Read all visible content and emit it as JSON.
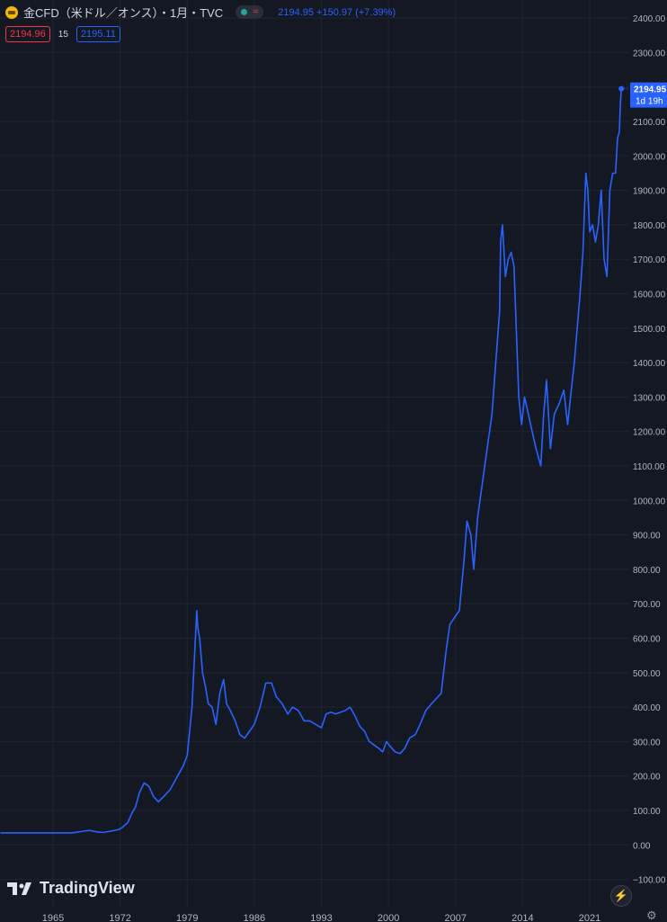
{
  "legend": {
    "title": "金CFD（米ドル／オンス）・1月・TVC",
    "price_change": "2194.95  +150.97 (+7.39%)",
    "market_status_icon": "green-dot",
    "wave_icon": "tilde"
  },
  "quotes": {
    "bid": "2194.96",
    "spread": "15",
    "ask": "2195.11"
  },
  "last_price": {
    "value": "2194.95",
    "countdown": "1d 19h"
  },
  "branding": {
    "logo_text": "TradingView"
  },
  "icons": {
    "bolt": "bolt-icon",
    "settings": "gear-icon"
  },
  "colors": {
    "background": "#141823",
    "line": "#2962ff",
    "grid": "#1f2433",
    "axis_text": "#b2b5be"
  },
  "chart_data": {
    "type": "line",
    "title": "金CFD（米ドル／オンス）",
    "xlabel": "",
    "ylabel": "",
    "ylim": [
      -100,
      2400
    ],
    "yticks": [
      -100,
      0,
      100,
      200,
      300,
      400,
      500,
      600,
      700,
      800,
      900,
      1000,
      1100,
      1200,
      1300,
      1400,
      1500,
      1600,
      1700,
      1800,
      1900,
      2000,
      2100,
      2200,
      2300,
      2400
    ],
    "ytick_labels": [
      "−100.00",
      "0.00",
      "100.00",
      "200.00",
      "300.00",
      "400.00",
      "500.00",
      "600.00",
      "700.00",
      "800.00",
      "900.00",
      "1000.00",
      "1100.00",
      "1200.00",
      "1300.00",
      "1400.00",
      "1500.00",
      "1600.00",
      "1700.00",
      "1800.00",
      "1900.00",
      "2000.00",
      "2100.00",
      "2200.00",
      "2300.00",
      "2400.00"
    ],
    "xticks": [
      1965,
      1972,
      1979,
      1986,
      1993,
      2000,
      2007,
      2014,
      2021
    ],
    "xlim": [
      1959.5,
      2024.6
    ],
    "grid": true,
    "series": [
      {
        "color": "#2962ff",
        "x": [
          1959.5,
          1967.0,
          1968.2,
          1968.8,
          1969.5,
          1970.2,
          1971.0,
          1971.8,
          1972.2,
          1972.8,
          1973.2,
          1973.6,
          1974.0,
          1974.5,
          1975.0,
          1975.5,
          1976.0,
          1976.7,
          1977.2,
          1978.0,
          1978.6,
          1979.0,
          1979.5,
          1980.0,
          1980.1,
          1980.3,
          1980.6,
          1980.9,
          1981.2,
          1981.6,
          1982.0,
          1982.4,
          1982.8,
          1983.1,
          1983.5,
          1984.0,
          1984.5,
          1985.0,
          1985.5,
          1986.0,
          1986.6,
          1987.2,
          1987.8,
          1988.3,
          1988.9,
          1989.5,
          1990.0,
          1990.6,
          1991.2,
          1991.8,
          1992.4,
          1993.0,
          1993.5,
          1994.0,
          1994.5,
          1995.0,
          1995.5,
          1996.0,
          1996.5,
          1997.0,
          1997.5,
          1998.0,
          1998.5,
          1999.0,
          1999.4,
          1999.8,
          2000.2,
          2000.7,
          2001.2,
          2001.7,
          2002.2,
          2002.8,
          2003.3,
          2003.9,
          2004.5,
          2005.0,
          2005.5,
          2006.0,
          2006.4,
          2006.9,
          2007.4,
          2007.9,
          2008.2,
          2008.6,
          2008.9,
          2009.3,
          2009.8,
          2010.3,
          2010.8,
          2011.2,
          2011.6,
          2011.7,
          2011.9,
          2012.2,
          2012.5,
          2012.8,
          2013.1,
          2013.4,
          2013.6,
          2013.9,
          2014.2,
          2014.6,
          2015.0,
          2015.4,
          2015.9,
          2016.2,
          2016.5,
          2016.9,
          2017.3,
          2017.8,
          2018.3,
          2018.7,
          2019.0,
          2019.4,
          2019.7,
          2020.0,
          2020.3,
          2020.6,
          2020.8,
          2021.0,
          2021.3,
          2021.6,
          2021.9,
          2022.2,
          2022.5,
          2022.8,
          2023.1,
          2023.4,
          2023.7,
          2023.9,
          2024.1,
          2024.2,
          2024.3
        ],
        "values": [
          35,
          35,
          40,
          42,
          38,
          36,
          40,
          44,
          50,
          65,
          90,
          110,
          150,
          180,
          170,
          140,
          125,
          145,
          160,
          200,
          230,
          260,
          400,
          680,
          630,
          600,
          500,
          460,
          410,
          400,
          350,
          440,
          480,
          410,
          390,
          360,
          320,
          310,
          330,
          350,
          400,
          470,
          470,
          430,
          410,
          380,
          400,
          390,
          360,
          360,
          350,
          340,
          380,
          385,
          380,
          385,
          390,
          400,
          375,
          345,
          330,
          300,
          290,
          280,
          270,
          300,
          285,
          270,
          265,
          280,
          310,
          320,
          350,
          390,
          410,
          425,
          440,
          560,
          640,
          660,
          680,
          830,
          940,
          900,
          800,
          950,
          1050,
          1150,
          1250,
          1400,
          1550,
          1750,
          1800,
          1650,
          1700,
          1720,
          1680,
          1450,
          1300,
          1220,
          1300,
          1250,
          1200,
          1150,
          1100,
          1250,
          1350,
          1150,
          1250,
          1280,
          1320,
          1220,
          1300,
          1400,
          1500,
          1600,
          1720,
          1950,
          1900,
          1780,
          1800,
          1750,
          1800,
          1900,
          1700,
          1650,
          1900,
          1950,
          1950,
          2050,
          2070,
          2150,
          2195
        ]
      }
    ]
  }
}
